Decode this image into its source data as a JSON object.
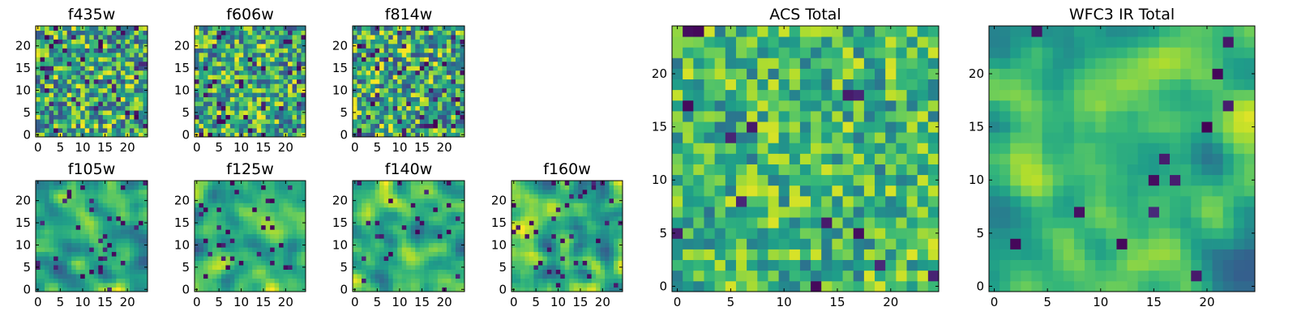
{
  "chart_data": [
    {
      "type": "heatmap",
      "title": "f435w",
      "colormap": "viridis",
      "xlim": [
        0,
        24
      ],
      "ylim": [
        0,
        24
      ],
      "grid": false,
      "xticks": [
        0,
        5,
        10,
        15,
        20
      ],
      "yticks": [
        0,
        5,
        10,
        15,
        20
      ],
      "size": [
        25,
        25
      ],
      "pattern": "noise",
      "seed": 435,
      "palette_range": [
        0.22,
        1.0
      ],
      "dark_frac": 0.06
    },
    {
      "type": "heatmap",
      "title": "f606w",
      "colormap": "viridis",
      "xlim": [
        0,
        24
      ],
      "ylim": [
        0,
        24
      ],
      "grid": false,
      "xticks": [
        0,
        5,
        10,
        15,
        20
      ],
      "yticks": [
        0,
        5,
        10,
        15,
        20
      ],
      "size": [
        25,
        25
      ],
      "pattern": "noise",
      "seed": 606,
      "palette_range": [
        0.22,
        1.0
      ],
      "dark_frac": 0.06
    },
    {
      "type": "heatmap",
      "title": "f814w",
      "colormap": "viridis",
      "xlim": [
        0,
        24
      ],
      "ylim": [
        0,
        24
      ],
      "grid": false,
      "xticks": [
        0,
        5,
        10,
        15,
        20
      ],
      "yticks": [
        0,
        5,
        10,
        15,
        20
      ],
      "size": [
        25,
        25
      ],
      "pattern": "noise",
      "seed": 814,
      "palette_range": [
        0.22,
        1.0
      ],
      "dark_frac": 0.06
    },
    {
      "type": "heatmap",
      "title": "f105w",
      "colormap": "viridis",
      "xlim": [
        0,
        24
      ],
      "ylim": [
        0,
        24
      ],
      "grid": false,
      "xticks": [
        0,
        5,
        10,
        15,
        20
      ],
      "yticks": [
        0,
        5,
        10,
        15,
        20
      ],
      "size": [
        25,
        25
      ],
      "pattern": "smooth",
      "seed": 105,
      "palette_range": [
        0.3,
        1.0
      ],
      "dark_frac": 0.04
    },
    {
      "type": "heatmap",
      "title": "f125w",
      "colormap": "viridis",
      "xlim": [
        0,
        24
      ],
      "ylim": [
        0,
        24
      ],
      "grid": false,
      "xticks": [
        0,
        5,
        10,
        15,
        20
      ],
      "yticks": [
        0,
        5,
        10,
        15,
        20
      ],
      "size": [
        25,
        25
      ],
      "pattern": "smooth",
      "seed": 125,
      "palette_range": [
        0.25,
        1.0
      ],
      "dark_frac": 0.06
    },
    {
      "type": "heatmap",
      "title": "f140w",
      "colormap": "viridis",
      "xlim": [
        0,
        24
      ],
      "ylim": [
        0,
        24
      ],
      "grid": false,
      "xticks": [
        0,
        5,
        10,
        15,
        20
      ],
      "yticks": [
        0,
        5,
        10,
        15,
        20
      ],
      "size": [
        25,
        25
      ],
      "pattern": "smooth",
      "seed": 140,
      "palette_range": [
        0.3,
        1.0
      ],
      "dark_frac": 0.05
    },
    {
      "type": "heatmap",
      "title": "f160w",
      "colormap": "viridis",
      "xlim": [
        0,
        24
      ],
      "ylim": [
        0,
        24
      ],
      "grid": false,
      "xticks": [
        0,
        5,
        10,
        15,
        20
      ],
      "yticks": [
        0,
        5,
        10,
        15,
        20
      ],
      "size": [
        25,
        25
      ],
      "pattern": "smooth",
      "seed": 160,
      "palette_range": [
        0.3,
        1.0
      ],
      "dark_frac": 0.05
    },
    {
      "type": "heatmap",
      "title": "ACS Total",
      "colormap": "viridis",
      "xlim": [
        0,
        24
      ],
      "ylim": [
        0,
        24
      ],
      "grid": false,
      "xticks": [
        0,
        5,
        10,
        15,
        20
      ],
      "yticks": [
        0,
        5,
        10,
        15,
        20
      ],
      "size": [
        25,
        25
      ],
      "pattern": "noise",
      "seed": 1001,
      "palette_range": [
        0.38,
        0.95
      ],
      "dark_frac": 0.025
    },
    {
      "type": "heatmap",
      "title": "WFC3 IR Total",
      "colormap": "viridis",
      "xlim": [
        0,
        24
      ],
      "ylim": [
        0,
        24
      ],
      "grid": false,
      "xticks": [
        0,
        5,
        10,
        15,
        20
      ],
      "yticks": [
        0,
        5,
        10,
        15,
        20
      ],
      "size": [
        25,
        25
      ],
      "pattern": "smooth",
      "seed": 2002,
      "palette_range": [
        0.3,
        0.95
      ],
      "dark_frac": 0.02
    }
  ]
}
